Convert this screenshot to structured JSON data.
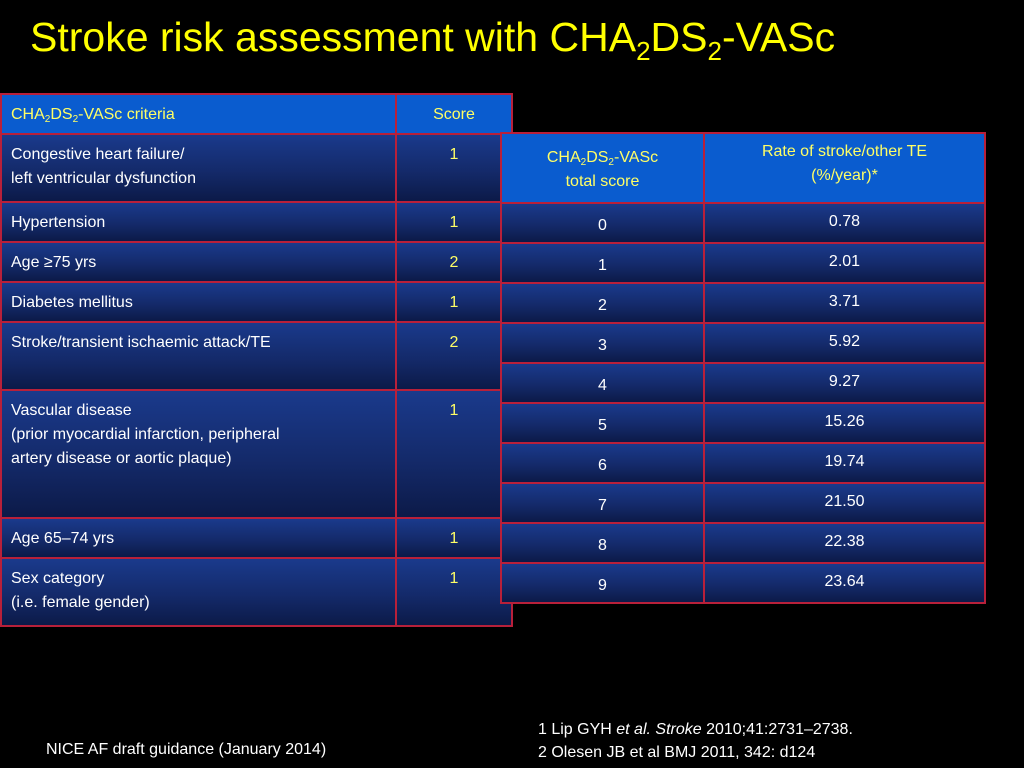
{
  "title": {
    "prefix": "Stroke risk assessment with CHA",
    "sub1": "2",
    "mid": "DS",
    "sub2": "2",
    "suffix": "-VASc"
  },
  "criteria_table": {
    "header": {
      "criteria_prefix": "CHA",
      "criteria_sub1": "2",
      "criteria_mid": "DS",
      "criteria_sub2": "2",
      "criteria_suffix": "-VASc criteria",
      "score": "Score"
    },
    "rows": [
      {
        "lines": [
          "Congestive heart failure/",
          "left ventricular dysfunction"
        ],
        "score": "1"
      },
      {
        "lines": [
          "Hypertension"
        ],
        "score": "1"
      },
      {
        "lines": [
          "Age ≥75 yrs"
        ],
        "score": "2"
      },
      {
        "lines": [
          "Diabetes mellitus"
        ],
        "score": "1"
      },
      {
        "lines": [
          "Stroke/transient ischaemic attack/TE"
        ],
        "score": "2"
      },
      {
        "lines": [
          "Vascular disease",
          "(prior myocardial infarction, peripheral",
          "artery disease or aortic plaque)"
        ],
        "score": "1"
      },
      {
        "lines": [
          "Age 65–74 yrs"
        ],
        "score": "1"
      },
      {
        "lines": [
          "Sex category",
          "(i.e. female gender)"
        ],
        "score": "1"
      }
    ]
  },
  "rate_table": {
    "header": {
      "score_prefix": "CHA",
      "score_sub1": "2",
      "score_mid": "DS",
      "score_sub2": "2",
      "score_suffix": "-VASc",
      "score_line2": "total score",
      "rate_line1": "Rate of stroke/other TE",
      "rate_line2": "(%/year)*"
    },
    "rows": [
      {
        "score": "0",
        "rate": "0.78"
      },
      {
        "score": "1",
        "rate": "2.01"
      },
      {
        "score": "2",
        "rate": "3.71"
      },
      {
        "score": "3",
        "rate": "5.92"
      },
      {
        "score": "4",
        "rate": "9.27"
      },
      {
        "score": "5",
        "rate": "15.26"
      },
      {
        "score": "6",
        "rate": "19.74"
      },
      {
        "score": "7",
        "rate": "21.50"
      },
      {
        "score": "8",
        "rate": "22.38"
      },
      {
        "score": "9",
        "rate": "23.64"
      }
    ]
  },
  "footer": {
    "source": "NICE AF  draft guidance (January 2014)",
    "ref1_prefix": "1 Lip GYH ",
    "ref1_italic": "et al. Stroke",
    "ref1_suffix": " 2010;41:2731–2738.",
    "ref2": "2 Olesen JB et al BMJ 2011, 342: d124"
  },
  "colors": {
    "background": "#000000",
    "title": "#ffff00",
    "header_fill": "#0a5ccf",
    "cell_fill": "#142a6a",
    "border": "#b8203a",
    "score_text": "#ffff66"
  }
}
